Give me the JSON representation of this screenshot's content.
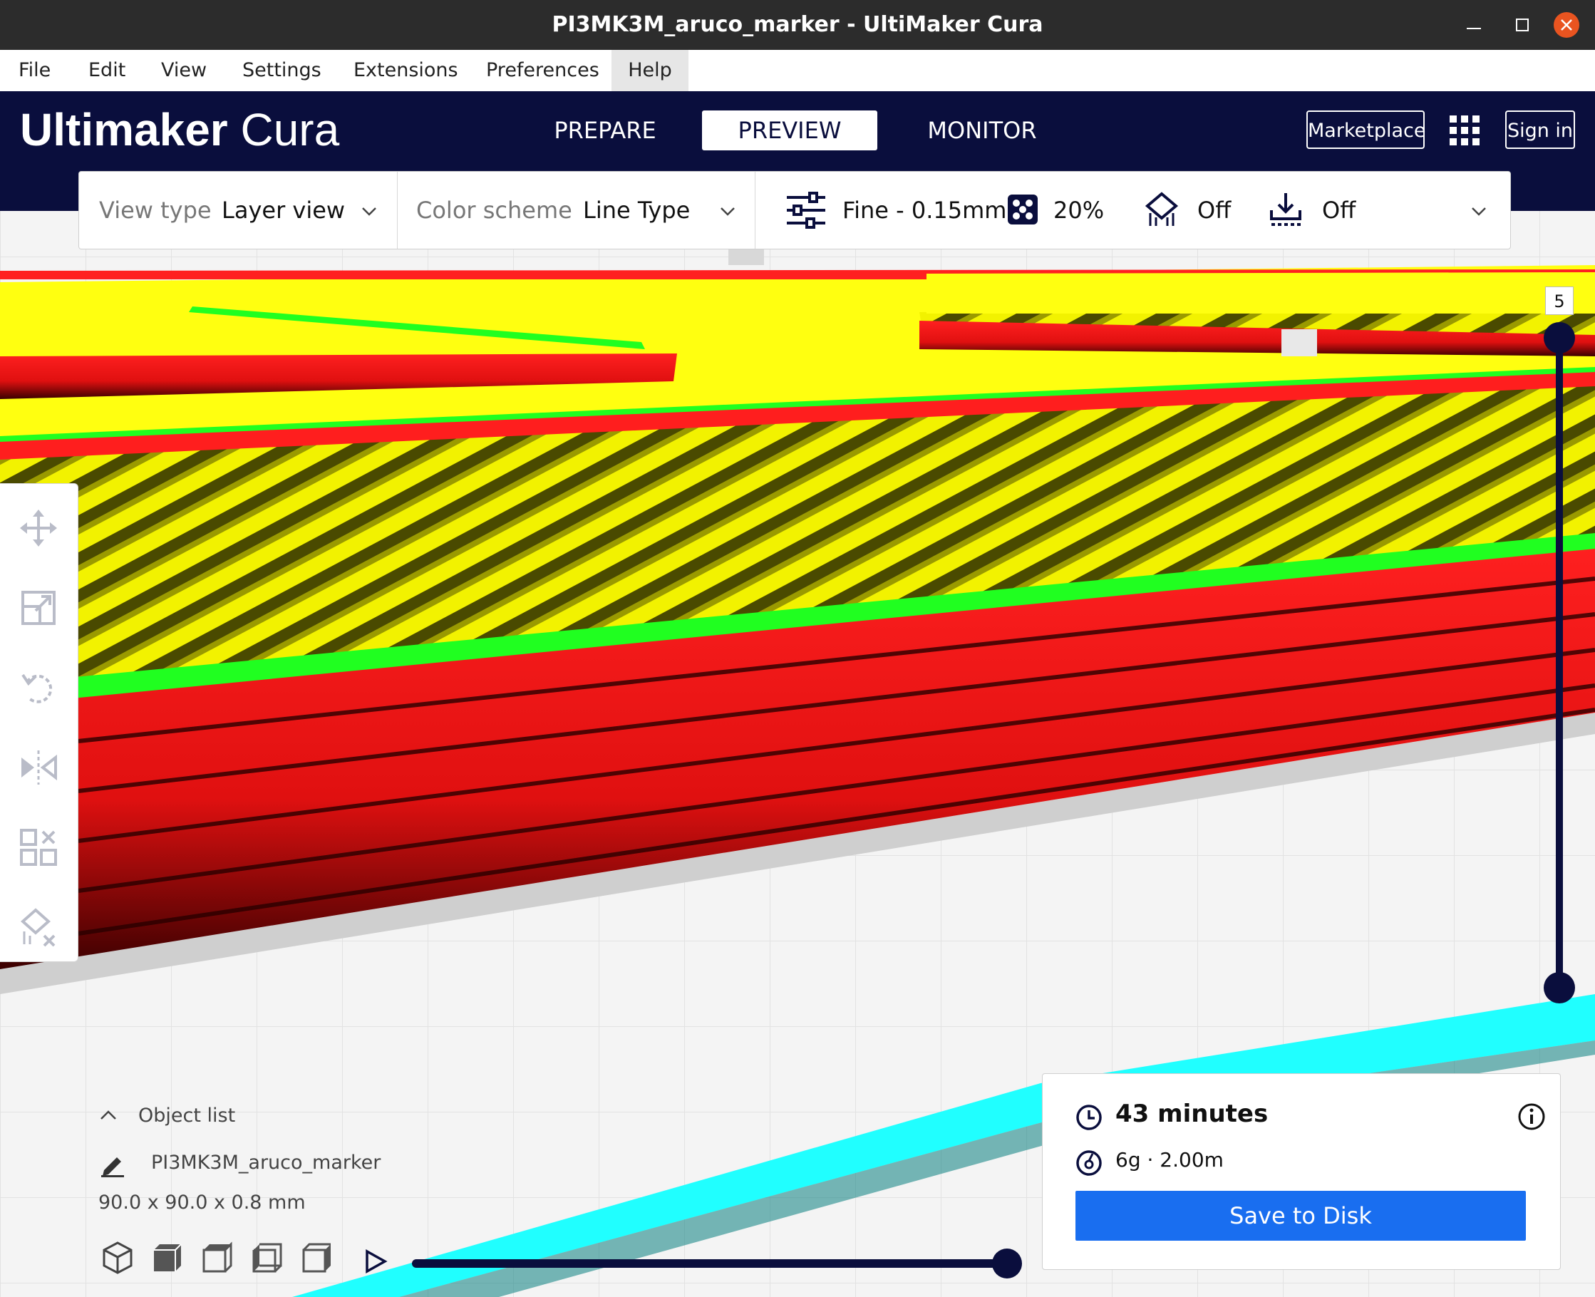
{
  "window": {
    "title": "PI3MK3M_aruco_marker - UltiMaker Cura"
  },
  "menu": {
    "items": [
      "File",
      "Edit",
      "View",
      "Settings",
      "Extensions",
      "Preferences",
      "Help"
    ]
  },
  "header": {
    "logo_bold": "Ultimaker",
    "logo_light": "Cura",
    "tabs": [
      {
        "label": "PREPARE",
        "active": false
      },
      {
        "label": "PREVIEW",
        "active": true
      },
      {
        "label": "MONITOR",
        "active": false
      }
    ],
    "marketplace_label": "Marketplace",
    "signin_label": "Sign in",
    "apps_icon": "grid-apps-icon"
  },
  "toolbar": {
    "view_type_label": "View type",
    "view_type_value": "Layer view",
    "color_scheme_label": "Color scheme",
    "color_scheme_value": "Line Type",
    "profile_value": "Fine - 0.15mm",
    "infill_value": "20%",
    "support_value": "Off",
    "adhesion_value": "Off",
    "icons": [
      "chevron-down-icon",
      "sliders-icon",
      "infill-icon",
      "support-icon",
      "adhesion-icon"
    ]
  },
  "tools": [
    "move-icon",
    "scale-icon",
    "rotate-icon",
    "mirror-icon",
    "per-model-settings-icon",
    "support-blocker-icon"
  ],
  "layer_slider": {
    "current_layer": "5"
  },
  "object_list": {
    "header": "Object list",
    "object_name": "PI3MK3M_aruco_marker",
    "dimensions": "90.0 x 90.0 x 0.8 mm",
    "view_buttons": [
      "3d-view-icon",
      "front-view-icon",
      "top-view-icon",
      "left-view-icon",
      "right-view-icon"
    ]
  },
  "simulation": {
    "play_icon": "play-icon",
    "progress": 1.0
  },
  "print_info": {
    "time": "43 minutes",
    "material": "6g · 2.00m",
    "save_label": "Save to Disk"
  },
  "colors": {
    "header_bg": "#0a0e3d",
    "accent_blue": "#196ef0",
    "skin_yellow": "#ffff00",
    "wall_red": "#ff1e1e",
    "inner_wall_green": "#1eff1e",
    "travel_cyan": "#1effff"
  }
}
